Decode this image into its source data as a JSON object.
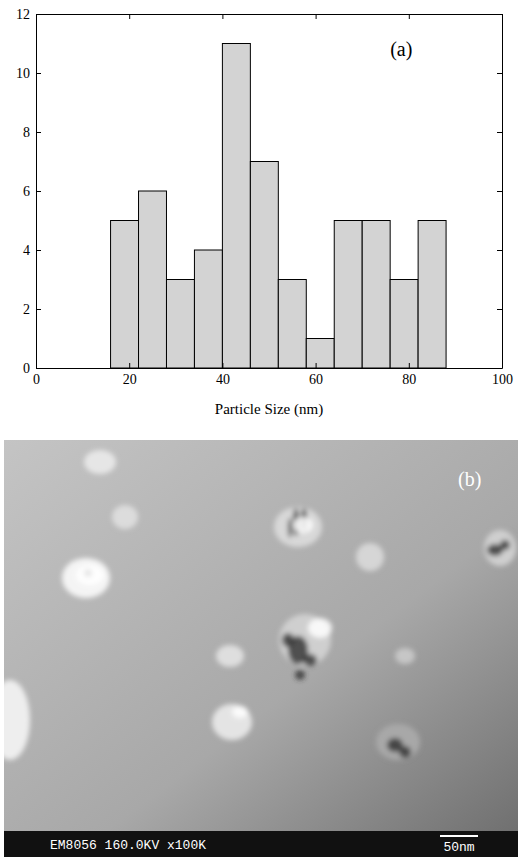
{
  "chart_data": {
    "type": "histogram",
    "bins": [
      16,
      22,
      28,
      34,
      40,
      46,
      52,
      58,
      64,
      70,
      76,
      82,
      88
    ],
    "values": [
      5,
      6,
      3,
      4,
      11,
      7,
      3,
      1,
      5,
      5,
      3,
      5
    ],
    "color": "#d3d3d3",
    "xlim": [
      0,
      100
    ],
    "xticks": [
      0,
      20,
      40,
      60,
      80,
      100
    ],
    "ylim": [
      0,
      12
    ],
    "yticks": [
      0,
      2,
      4,
      6,
      8,
      10,
      12
    ],
    "x_label": "Particle Size (nm)",
    "annotation": "(a)",
    "grid": false
  },
  "micrograph": {
    "label": "(b)",
    "caption": "EM8056 160.0KV x100K",
    "scale_bar": "50nm"
  }
}
